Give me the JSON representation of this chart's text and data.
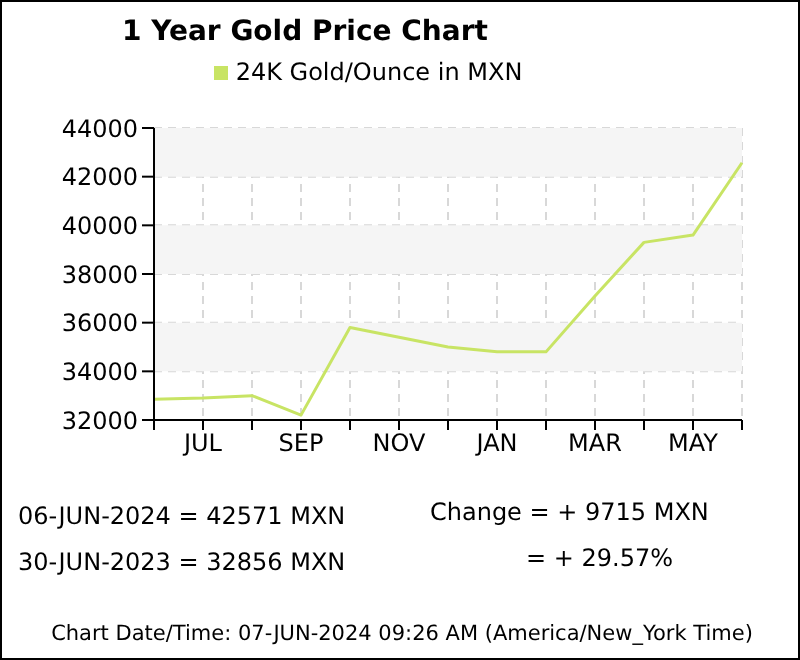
{
  "chart_data": {
    "type": "line",
    "title": "1 Year Gold Price Chart",
    "categories": [
      null,
      "JUL",
      null,
      "SEP",
      null,
      "NOV",
      null,
      "JAN",
      null,
      "MAR",
      null,
      "MAY",
      null
    ],
    "series": [
      {
        "name": "24K Gold/Ounce  in MXN",
        "color": "#c8e464",
        "values": [
          32856,
          32900,
          33000,
          32200,
          35800,
          35400,
          35000,
          34800,
          34800,
          37100,
          39300,
          39600,
          42571
        ]
      }
    ],
    "ylim": [
      32000,
      44000
    ],
    "yticks": [
      32000,
      34000,
      36000,
      38000,
      40000,
      42000,
      44000
    ],
    "grid": true,
    "legend": "top",
    "marker": "none",
    "line_style": "solid",
    "bands": [
      {
        "axis": "y",
        "from": 34000,
        "to": 36000,
        "color": "#f5f5f5"
      },
      {
        "axis": "y",
        "from": 38000,
        "to": 40000,
        "color": "#f5f5f5"
      },
      {
        "axis": "y",
        "from": 42000,
        "to": 44000,
        "color": "#f5f5f5"
      }
    ],
    "annotations": [
      "06-JUN-2024 = 42571 MXN",
      "30-JUN-2023 = 32856 MXN",
      "Change   = + 9715 MXN",
      "= + 29.57%",
      "Chart Date/Time: 07-JUN-2024 09:26 AM (America/New_York Time)"
    ]
  }
}
